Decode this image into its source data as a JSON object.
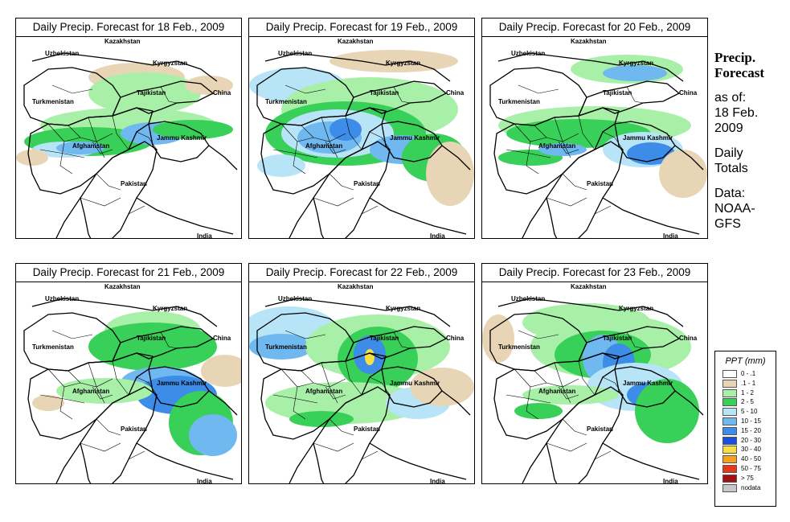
{
  "panels": [
    {
      "title": "Daily Precip. Forecast for  18 Feb., 2009",
      "key": "p18"
    },
    {
      "title": "Daily Precip. Forecast for  19 Feb., 2009",
      "key": "p19"
    },
    {
      "title": "Daily Precip. Forecast for  20 Feb., 2009",
      "key": "p20"
    },
    {
      "title": "Daily Precip. Forecast for  21 Feb., 2009",
      "key": "p21"
    },
    {
      "title": "Daily Precip. Forecast for  22 Feb., 2009",
      "key": "p22"
    },
    {
      "title": "Daily Precip. Forecast for  23 Feb., 2009",
      "key": "p23"
    }
  ],
  "map_labels": {
    "kazakhstan": "Kazakhstan",
    "uzbekistan": "Uzbekistan",
    "kyrgyzstan": "Kyrgyzstan",
    "turkmenistan": "Turkmenistan",
    "tajikistan": "Tajikistan",
    "china": "China",
    "afghanistan": "Afghanistan",
    "jammu_kashmir": "Jammu Kashmir",
    "pakistan": "Pakistan",
    "india": "India"
  },
  "sidebar": {
    "heading_line1": "Precip.",
    "heading_line2": "Forecast",
    "asof_line1": "as of:",
    "asof_line2": "18 Feb.",
    "asof_line3": "2009",
    "totals_line1": "Daily",
    "totals_line2": "Totals",
    "source_line1": "Data:",
    "source_line2": "NOAA-",
    "source_line3": "GFS"
  },
  "legend": {
    "title": "PPT (mm)",
    "items": [
      {
        "label": "0 - .1",
        "color": "#ffffff"
      },
      {
        "label": ".1 - 1",
        "color": "#e8d5b5"
      },
      {
        "label": "1 - 2",
        "color": "#a8f0a8"
      },
      {
        "label": "2 - 5",
        "color": "#38d058"
      },
      {
        "label": "5 - 10",
        "color": "#b8e4f8"
      },
      {
        "label": "10 - 15",
        "color": "#70b8f0"
      },
      {
        "label": "15 - 20",
        "color": "#3c8ce8"
      },
      {
        "label": "20 - 30",
        "color": "#1c50d8"
      },
      {
        "label": "30 - 40",
        "color": "#f8e040"
      },
      {
        "label": "40 - 50",
        "color": "#f8a020"
      },
      {
        "label": "50 - 75",
        "color": "#e83818"
      },
      {
        "label": "> 75",
        "color": "#a81010"
      },
      {
        "label": "nodata",
        "color": "#c8c8c8"
      }
    ]
  }
}
